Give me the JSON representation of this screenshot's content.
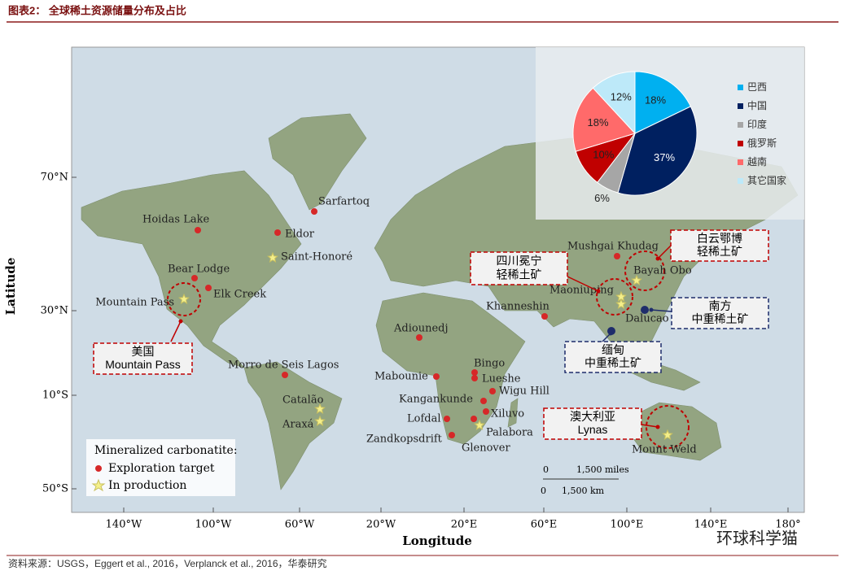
{
  "header": {
    "title": "图表2：  全球稀土资源储量分布及占比"
  },
  "map": {
    "y_axis_label": "Latitude",
    "x_axis_label": "Longitude",
    "lat_ticks": [
      "70°N",
      "30°N",
      "10°S",
      "50°S"
    ],
    "lon_ticks": [
      "140°W",
      "100°W",
      "60°W",
      "20°W",
      "20°E",
      "60°E",
      "100°E",
      "140°E",
      "180°"
    ],
    "sites": [
      {
        "label": "Sarfartoq",
        "kind": "exploration"
      },
      {
        "label": "Hoidas Lake",
        "kind": "exploration"
      },
      {
        "label": "Eldor",
        "kind": "exploration"
      },
      {
        "label": "Saint-Honoré",
        "kind": "production"
      },
      {
        "label": "Bear Lodge",
        "kind": "exploration"
      },
      {
        "label": "Elk Creek",
        "kind": "exploration"
      },
      {
        "label": "Mountain Pass",
        "kind": "production"
      },
      {
        "label": "Morro de Seis Lagos",
        "kind": "exploration"
      },
      {
        "label": "Catalão",
        "kind": "production"
      },
      {
        "label": "Araxá",
        "kind": "production"
      },
      {
        "label": "Adiounedj",
        "kind": "exploration"
      },
      {
        "label": "Mabounie",
        "kind": "exploration"
      },
      {
        "label": "Bingo",
        "kind": "exploration"
      },
      {
        "label": "Lueshe",
        "kind": "exploration"
      },
      {
        "label": "Wigu Hill",
        "kind": "exploration"
      },
      {
        "label": "Kangankunde",
        "kind": "exploration"
      },
      {
        "label": "Xiluvo",
        "kind": "exploration"
      },
      {
        "label": "Lofdal",
        "kind": "exploration"
      },
      {
        "label": "Palabora",
        "kind": "production"
      },
      {
        "label": "Zandkopsdrift",
        "kind": "exploration"
      },
      {
        "label": "Glenover",
        "kind": "exploration"
      },
      {
        "label": "Khanneshin",
        "kind": "exploration"
      },
      {
        "label": "Mushgai Khudag",
        "kind": "exploration"
      },
      {
        "label": "Bayah Obo",
        "kind": "production"
      },
      {
        "label": "Maoniuping",
        "kind": "production"
      },
      {
        "label": "Dalucao",
        "kind": "china"
      },
      {
        "label": "Mount Weld",
        "kind": "production"
      }
    ],
    "legend": {
      "title": "Mineralized carbonatite:",
      "items": [
        "Exploration target",
        "In production"
      ]
    },
    "scale": {
      "mi_zero": "0",
      "mi": "1,500 miles",
      "km_zero": "0",
      "km": "1,500 km"
    },
    "callouts": [
      {
        "lines": [
          "美国",
          "Mountain Pass"
        ],
        "style": "red"
      },
      {
        "lines": [
          "四川冕宁",
          "轻稀土矿"
        ],
        "style": "red"
      },
      {
        "lines": [
          "白云鄂博",
          "轻稀土矿"
        ],
        "style": "red"
      },
      {
        "lines": [
          "南方",
          "中重稀土矿"
        ],
        "style": "navy"
      },
      {
        "lines": [
          "缅甸",
          "中重稀土矿"
        ],
        "style": "navy"
      },
      {
        "lines": [
          "澳大利亚",
          "Lynas"
        ],
        "style": "red"
      }
    ]
  },
  "chart_data": {
    "type": "pie",
    "categories": [
      "巴西",
      "中国",
      "印度",
      "俄罗斯",
      "越南",
      "其它国家"
    ],
    "values": [
      18,
      37,
      6,
      10,
      18,
      12
    ],
    "value_labels": [
      "18%",
      "37%",
      "6%",
      "10%",
      "18%",
      "12%"
    ],
    "colors": [
      "#00b0f0",
      "#002060",
      "#a6a6a6",
      "#c00000",
      "#ff6a6a",
      "#bde9f9"
    ]
  },
  "footer": {
    "source": "资料来源：USGS，Eggert et al., 2016，Verplanck et al., 2016，华泰研究",
    "watermark": "环球科学猫"
  }
}
